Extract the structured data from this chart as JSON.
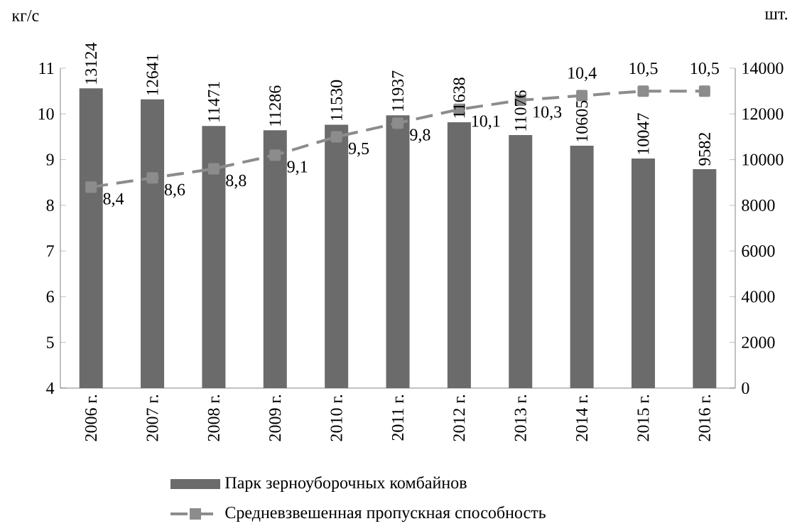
{
  "chart_data": {
    "type": "bar",
    "ylabel": "кг/с",
    "y2label": "шт.",
    "categories": [
      "2006 г.",
      "2007 г.",
      "2008 г.",
      "2009 г.",
      "2010 г.",
      "2011 г.",
      "2012 г.",
      "2013 г.",
      "2014 г.",
      "2015 г.",
      "2016 г."
    ],
    "series": [
      {
        "name": "Парк зерноуборочных комбайнов",
        "axis": "y2",
        "color": "#6b6b6b",
        "values": [
          13124,
          12641,
          11471,
          11286,
          11530,
          11937,
          11638,
          11076,
          10605,
          10047,
          9582
        ],
        "value_labels": [
          "13124",
          "12641",
          "11471",
          "11286",
          "11530",
          "11937",
          "11638",
          "11076",
          "10605",
          "10047",
          "9582"
        ]
      },
      {
        "name": "Средневзвешенная пропускная способность",
        "type": "line",
        "axis": "y",
        "color": "#8c8c8c",
        "line_style": "dashed",
        "marker": "square",
        "values": [
          8.4,
          8.6,
          8.8,
          9.1,
          9.5,
          9.8,
          10.1,
          10.3,
          10.4,
          10.5,
          10.5
        ],
        "value_labels": [
          "8,4",
          "8,6",
          "8,8",
          "9,1",
          "9,5",
          "9,8",
          "10,1",
          "10,3",
          "10,4",
          "10,5",
          "10,5"
        ]
      }
    ],
    "ylim": [
      4,
      11
    ],
    "yticks": [
      4,
      5,
      6,
      7,
      8,
      9,
      10,
      11
    ],
    "y2lim": [
      0,
      14000
    ],
    "y2ticks": [
      0,
      2000,
      4000,
      6000,
      8000,
      10000,
      12000,
      14000
    ],
    "grid": false,
    "legend": "bottom"
  }
}
